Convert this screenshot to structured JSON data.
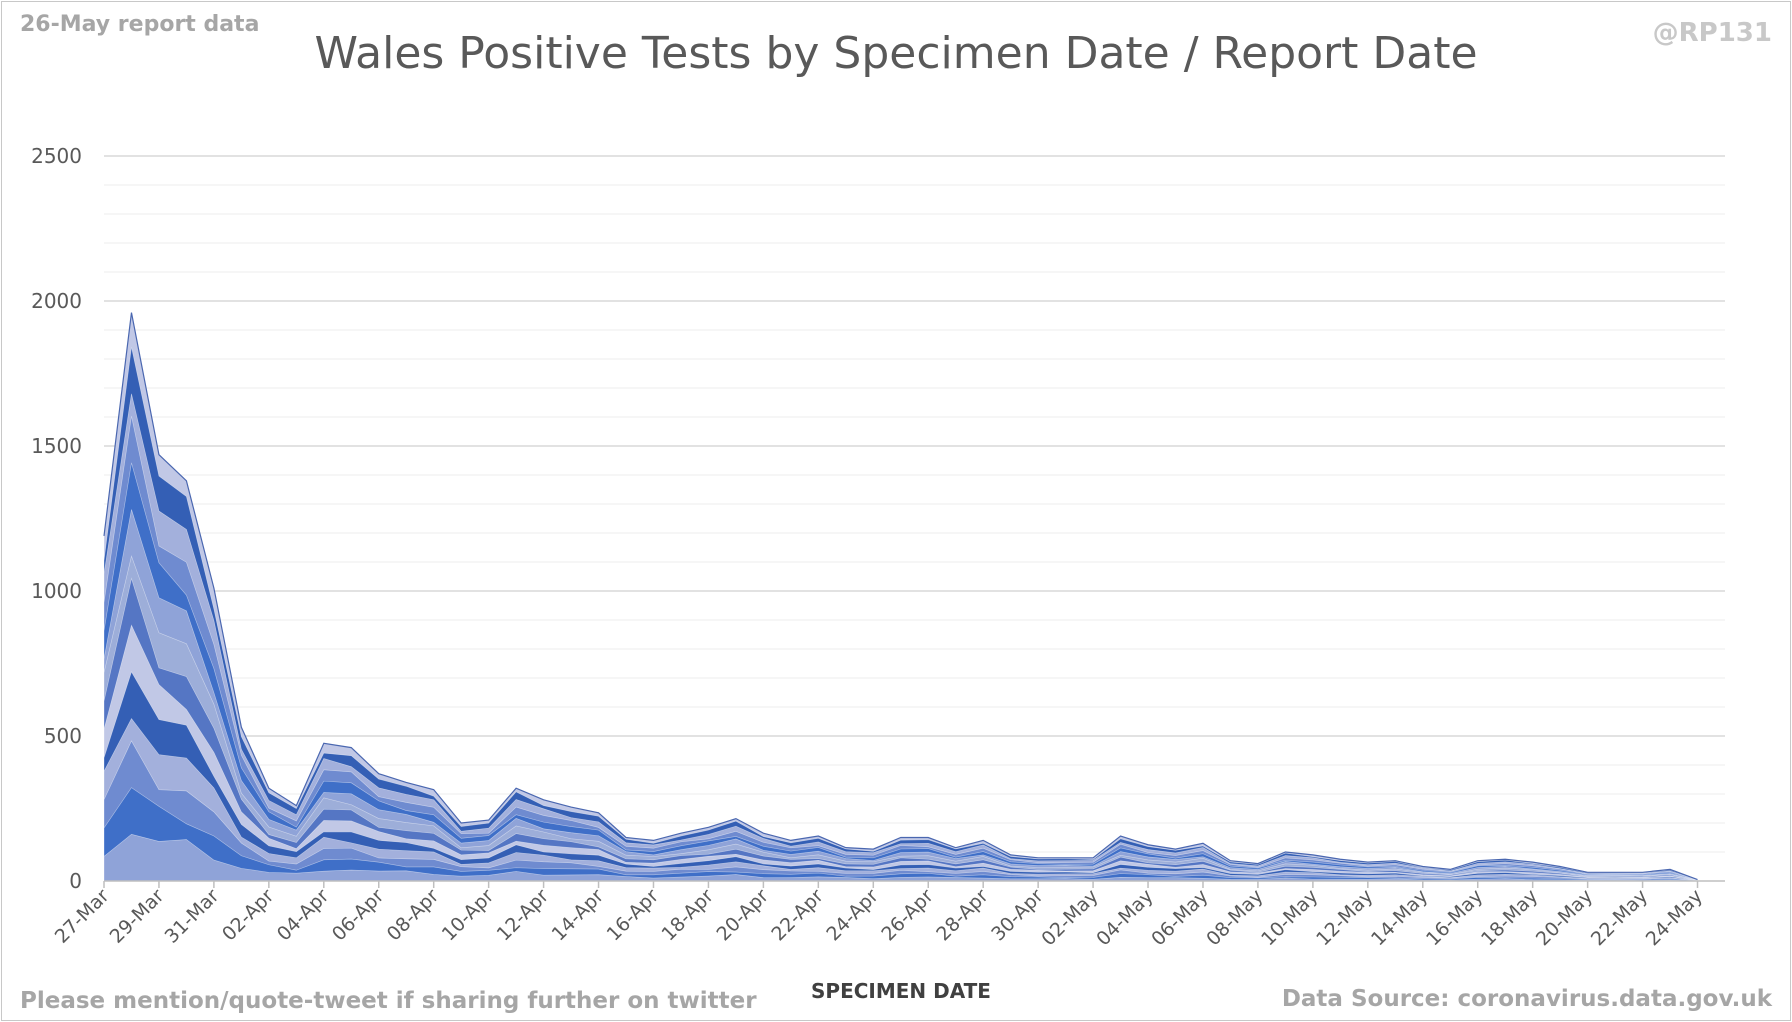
{
  "header": {
    "report_note": "26-May report data",
    "handle": "@RP131"
  },
  "footer": {
    "mention_note": "Please mention/quote-tweet if sharing further on twitter",
    "source_note": "Data Source: coronavirus.data.gov.uk"
  },
  "colors": {
    "band_palette": [
      "#8fa3d8",
      "#3f6fc8",
      "#6f8bd0",
      "#a3b0dc",
      "#345fb5",
      "#c1c8e6",
      "#5576c4",
      "#9daed9"
    ],
    "grid_major": "#d9d9d9",
    "grid_minor": "#eeeeee",
    "text": "#595959"
  },
  "chart_data": {
    "type": "area",
    "title": "Wales Positive Tests by Specimen Date / Report Date",
    "xlabel": "SPECIMEN DATE",
    "ylabel": "",
    "ylim": [
      0,
      2500
    ],
    "y_ticks": [
      0,
      500,
      1000,
      1500,
      2000,
      2500
    ],
    "grid": true,
    "legend": "none",
    "x_start_label": "27-Mar",
    "x_tick_labels": [
      "27-Mar",
      "29-Mar",
      "31-Mar",
      "02-Apr",
      "04-Apr",
      "06-Apr",
      "08-Apr",
      "10-Apr",
      "12-Apr",
      "14-Apr",
      "16-Apr",
      "18-Apr",
      "20-Apr",
      "22-Apr",
      "24-Apr",
      "26-Apr",
      "28-Apr",
      "30-Apr",
      "02-May",
      "04-May",
      "06-May",
      "08-May",
      "10-May",
      "12-May",
      "14-May",
      "16-May",
      "18-May",
      "20-May",
      "22-May",
      "24-May"
    ],
    "total_by_specimen_date": [
      1190,
      1960,
      1470,
      1380,
      1010,
      530,
      320,
      260,
      475,
      460,
      370,
      340,
      315,
      200,
      210,
      320,
      280,
      255,
      235,
      150,
      140,
      165,
      185,
      215,
      165,
      140,
      155,
      115,
      110,
      150,
      150,
      115,
      140,
      90,
      80,
      80,
      80,
      155,
      125,
      110,
      130,
      70,
      60,
      100,
      90,
      75,
      65,
      70,
      50,
      40,
      70,
      75,
      65,
      50,
      30,
      30,
      30,
      40,
      5
    ]
  }
}
